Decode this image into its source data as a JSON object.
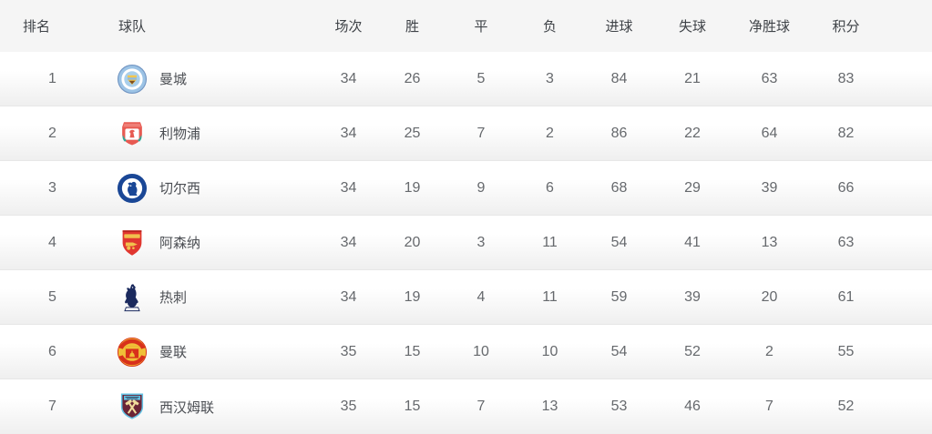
{
  "table": {
    "columns": [
      "排名",
      "球队",
      "场次",
      "胜",
      "平",
      "负",
      "进球",
      "失球",
      "净胜球",
      "积分"
    ],
    "column_keys": [
      "rank",
      "team",
      "played",
      "won",
      "drawn",
      "lost",
      "goals-for",
      "goals-against",
      "goal-diff",
      "points"
    ],
    "rows": [
      {
        "rank": "1",
        "team": "曼城",
        "badge": "man-city",
        "stats": [
          "34",
          "26",
          "5",
          "3",
          "84",
          "21",
          "63",
          "83"
        ]
      },
      {
        "rank": "2",
        "team": "利物浦",
        "badge": "liverpool",
        "stats": [
          "34",
          "25",
          "7",
          "2",
          "86",
          "22",
          "64",
          "82"
        ]
      },
      {
        "rank": "3",
        "team": "切尔西",
        "badge": "chelsea",
        "stats": [
          "34",
          "19",
          "9",
          "6",
          "68",
          "29",
          "39",
          "66"
        ]
      },
      {
        "rank": "4",
        "team": "阿森纳",
        "badge": "arsenal",
        "stats": [
          "34",
          "20",
          "3",
          "11",
          "54",
          "41",
          "13",
          "63"
        ]
      },
      {
        "rank": "5",
        "team": "热刺",
        "badge": "tottenham",
        "stats": [
          "34",
          "19",
          "4",
          "11",
          "59",
          "39",
          "20",
          "61"
        ]
      },
      {
        "rank": "6",
        "team": "曼联",
        "badge": "man-united",
        "stats": [
          "35",
          "15",
          "10",
          "10",
          "54",
          "52",
          "2",
          "55"
        ]
      },
      {
        "rank": "7",
        "team": "西汉姆联",
        "badge": "west-ham",
        "stats": [
          "35",
          "15",
          "7",
          "13",
          "53",
          "46",
          "7",
          "52"
        ]
      }
    ],
    "badge_colors": {
      "man-city": "#9cc3e5",
      "liverpool": "#e75a52",
      "chelsea": "#1a4796",
      "arsenal": "#e0362f",
      "tottenham": "#1b2a5e",
      "man-united": "#d8301b",
      "west-ham": "#6b2436"
    }
  },
  "theme": {
    "header_bg": "#f5f5f5",
    "header_text": "#3e4247",
    "cell_text": "#66696d",
    "team_text": "#4b4e53",
    "row_top": "#ffffff",
    "row_bottom": "#efefef",
    "divider": "#e7e7e7"
  }
}
